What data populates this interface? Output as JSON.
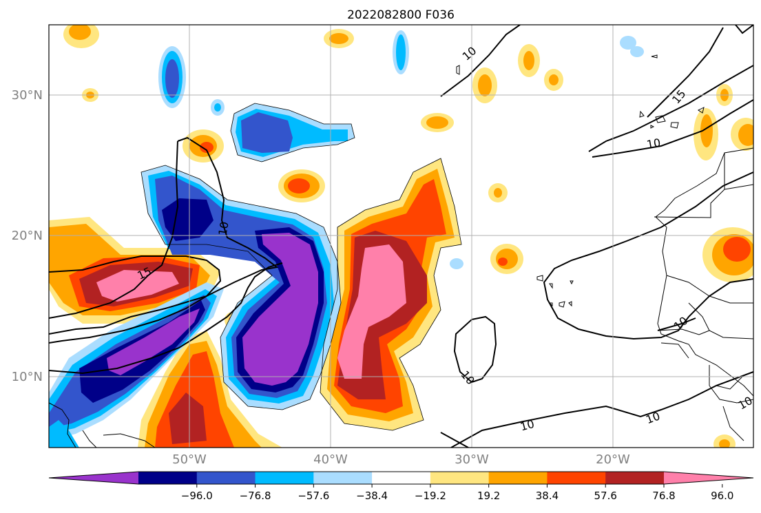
{
  "title": "2022082800 F036",
  "lon_labels": [
    "50°W",
    "40°W",
    "30°W",
    "20°W"
  ],
  "lat_labels": [
    "30°N",
    "20°N",
    "10°N"
  ],
  "contour_labels": [
    "10",
    "15",
    "10",
    "15",
    "10",
    "10",
    "10",
    "10",
    "10",
    "10"
  ],
  "colorbar": {
    "ticks": [
      "−96.0",
      "−76.8",
      "−57.6",
      "−38.4",
      "−19.2",
      "19.2",
      "38.4",
      "57.6",
      "76.8",
      "96.0"
    ],
    "colors": [
      "#9933cc",
      "#000088",
      "#3355cc",
      "#00bbff",
      "#aaddff",
      "#ffffff",
      "#ffe680",
      "#ffa500",
      "#ff4400",
      "#b22222",
      "#ff80aa"
    ]
  }
}
